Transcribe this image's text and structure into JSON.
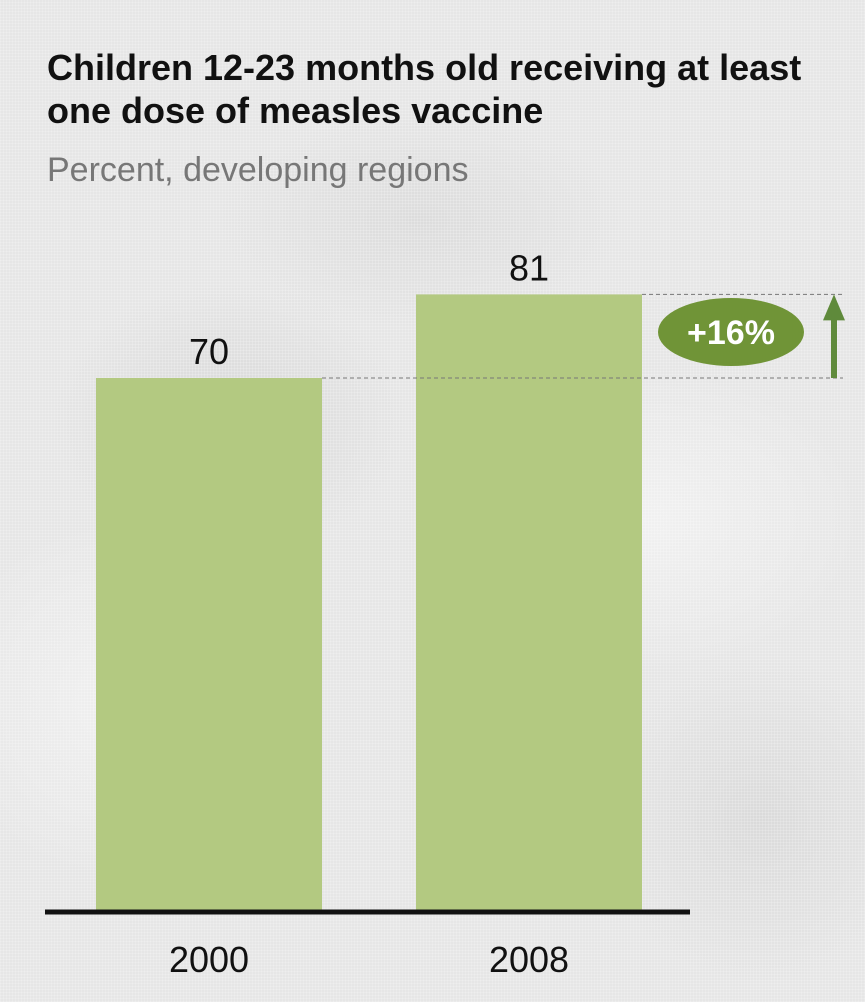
{
  "chart_data": {
    "type": "bar",
    "title": "Children 12-23 months old receiving at least one dose of measles vaccine",
    "subtitle": "Percent, developing regions",
    "categories": [
      "2000",
      "2008"
    ],
    "values": [
      70,
      81
    ],
    "data_labels": [
      "70",
      "81"
    ],
    "annotation": {
      "text": "+16%",
      "from": 70,
      "to": 81
    },
    "colors": {
      "bar": "#b3c981",
      "badge": "#709437",
      "arrow": "#5f8a3b",
      "axis": "#111111",
      "guide": "#777777"
    },
    "grid": false,
    "legend": "none"
  }
}
